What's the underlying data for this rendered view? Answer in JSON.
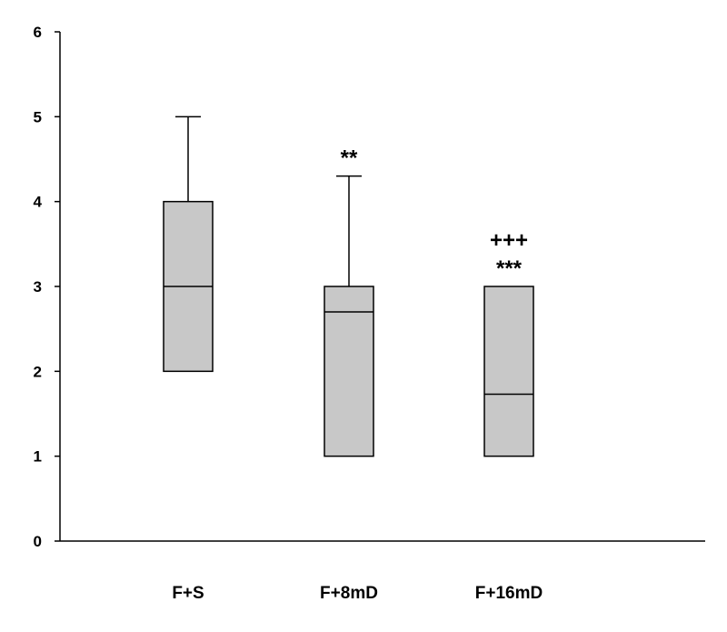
{
  "chart_data": {
    "type": "boxplot",
    "title": "",
    "xlabel": "",
    "ylabel": "",
    "ylim": [
      0,
      6
    ],
    "yticks": [
      "0",
      "1",
      "2",
      "3",
      "4",
      "5",
      "6"
    ],
    "grid": false,
    "categories": [
      "F+S",
      "F+8mD",
      "F+16mD"
    ],
    "boxes": [
      {
        "q1": 2,
        "median": 3,
        "q3": 4,
        "whisker_low": 2,
        "whisker_high": 5,
        "annotations": []
      },
      {
        "q1": 1,
        "median": 2.7,
        "q3": 3,
        "whisker_low": 1,
        "whisker_high": 4.3,
        "annotations": [
          "**"
        ]
      },
      {
        "q1": 1,
        "median": 1.73,
        "q3": 3,
        "whisker_low": 1,
        "whisker_high": 3,
        "annotations": [
          "+++",
          "***"
        ]
      }
    ]
  }
}
